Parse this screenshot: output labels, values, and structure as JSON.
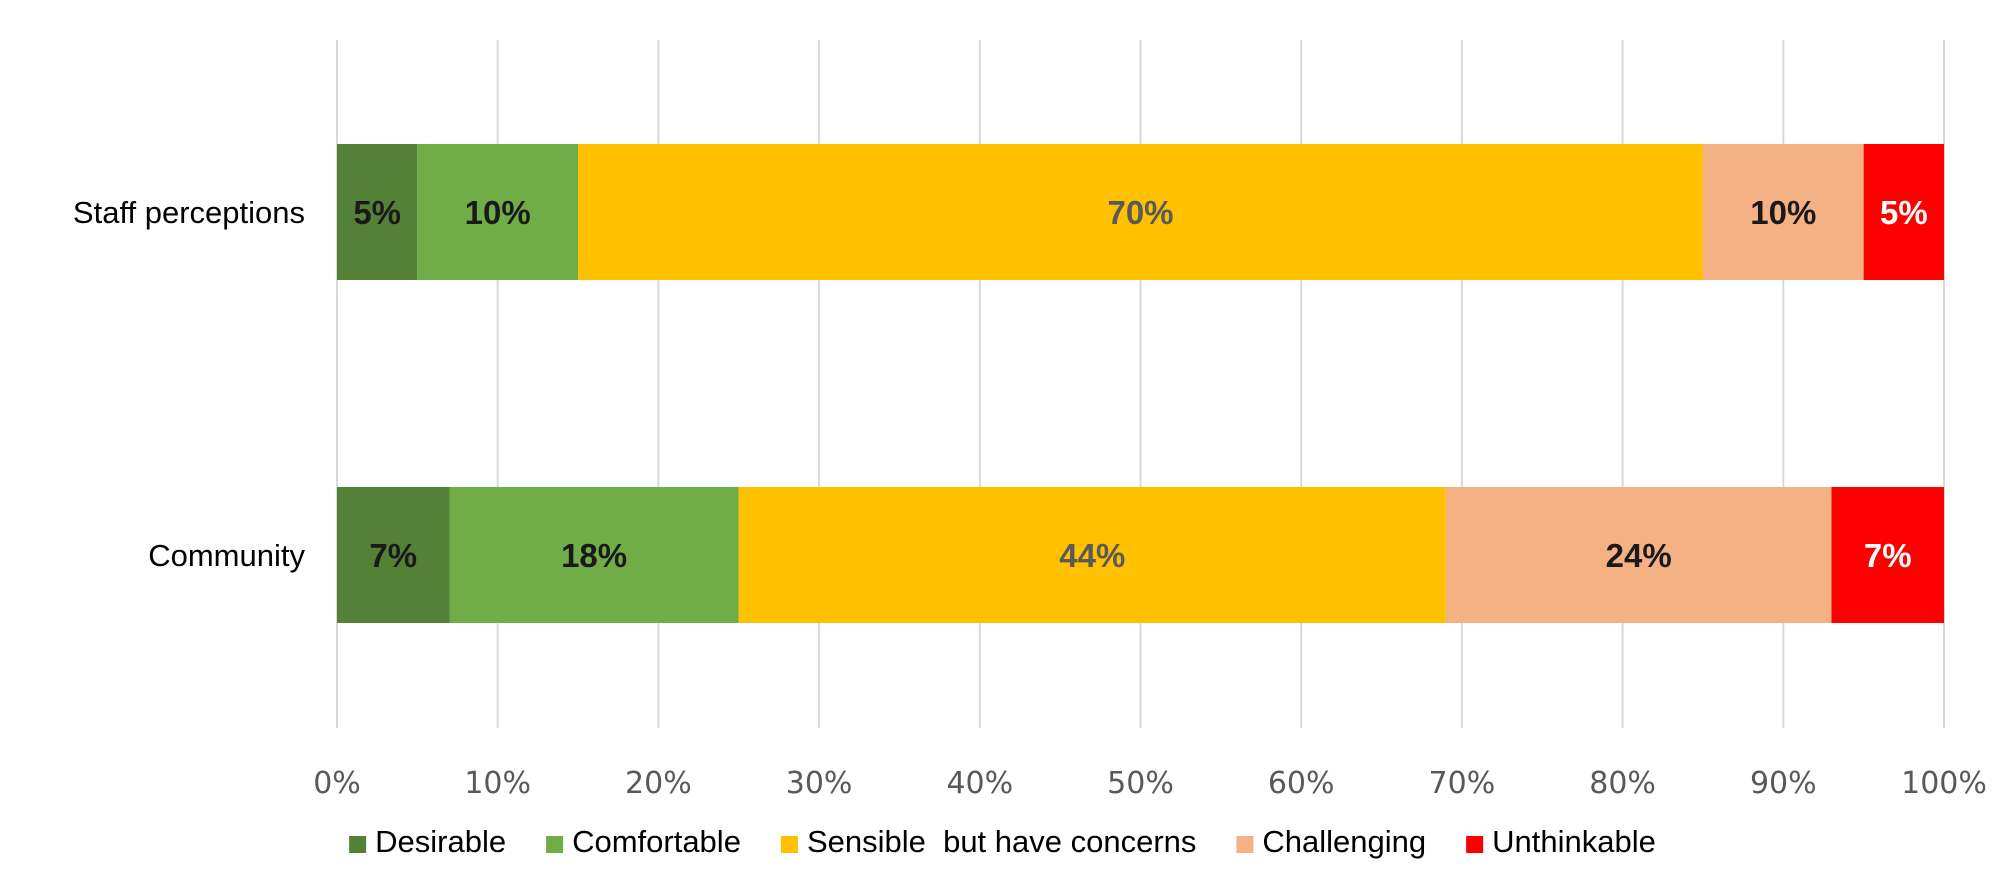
{
  "chart_data": {
    "type": "bar",
    "orientation": "horizontal",
    "stacked": true,
    "categories": [
      "Staff perceptions",
      "Community"
    ],
    "series": [
      {
        "name": "Desirable",
        "color": "#538135",
        "label_color": "#1a1a1a",
        "values": [
          5,
          7
        ],
        "labels": [
          "5%",
          "7%"
        ]
      },
      {
        "name": "Comfortable",
        "color": "#70AD47",
        "label_color": "#1a1a1a",
        "values": [
          10,
          18
        ],
        "labels": [
          "10%",
          "18%"
        ]
      },
      {
        "name": "Sensible  but have concerns",
        "color": "#FFC000",
        "label_color": "#595959",
        "values": [
          70,
          44
        ],
        "labels": [
          "70%",
          "44%"
        ]
      },
      {
        "name": "Challenging",
        "color": "#F4B183",
        "label_color": "#1a1a1a",
        "values": [
          10,
          24
        ],
        "labels": [
          "10%",
          "24%"
        ]
      },
      {
        "name": "Unthinkable",
        "color": "#FF0000",
        "label_color": "#ffffff",
        "values": [
          5,
          7
        ],
        "labels": [
          "5%",
          "7%"
        ]
      }
    ],
    "x_ticks": [
      "0%",
      "10%",
      "20%",
      "30%",
      "40%",
      "50%",
      "60%",
      "70%",
      "80%",
      "90%",
      "100%"
    ],
    "xlim": [
      0,
      100
    ],
    "grid": true,
    "legend_position": "bottom"
  }
}
